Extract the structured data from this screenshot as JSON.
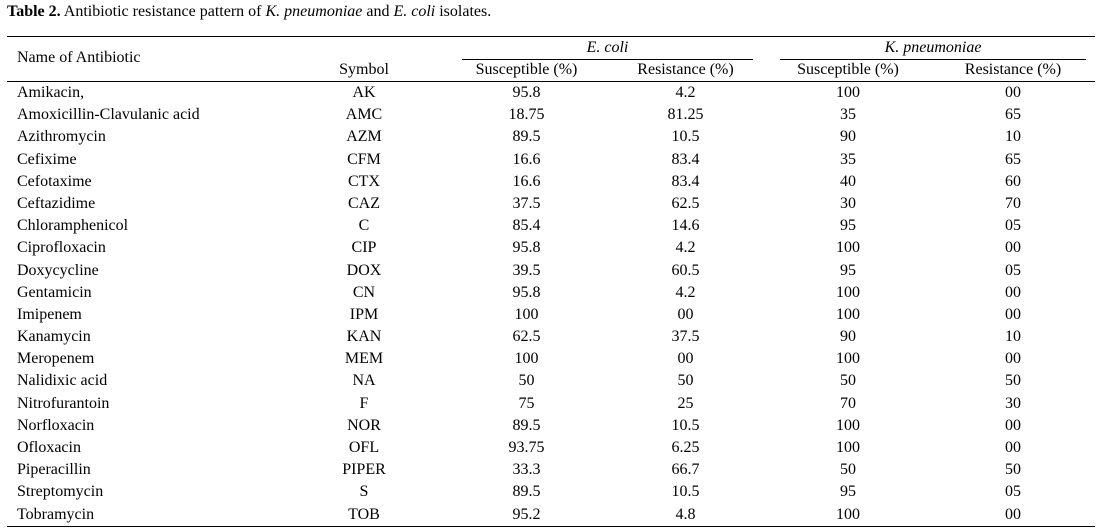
{
  "caption": {
    "label": "Table 2.",
    "text_1": " Antibiotic resistance pattern of ",
    "organism_1": "K. pneumoniae",
    "text_2": " and ",
    "organism_2": "E. coli",
    "text_3": " isolates."
  },
  "header": {
    "name": "Name of Antibiotic",
    "symbol": "Symbol",
    "group_ecoli": "E. coli",
    "group_kpn": "K. pneumoniae",
    "ecoli_susceptible": "Susceptible (%)",
    "ecoli_resistance": "Resistance (%)",
    "kpn_susceptible": "Susceptible (%)",
    "kpn_resistance": "Resistance (%)"
  },
  "rows": [
    {
      "name": "Amikacin,",
      "symbol": "AK",
      "ecoli_s": "95.8",
      "ecoli_r": "4.2",
      "kpn_s": "100",
      "kpn_r": "00"
    },
    {
      "name": "Amoxicillin-Clavulanic acid",
      "symbol": "AMC",
      "ecoli_s": "18.75",
      "ecoli_r": "81.25",
      "kpn_s": "35",
      "kpn_r": "65"
    },
    {
      "name": "Azithromycin",
      "symbol": "AZM",
      "ecoli_s": "89.5",
      "ecoli_r": "10.5",
      "kpn_s": "90",
      "kpn_r": "10"
    },
    {
      "name": "Cefixime",
      "symbol": "CFM",
      "ecoli_s": "16.6",
      "ecoli_r": "83.4",
      "kpn_s": "35",
      "kpn_r": "65"
    },
    {
      "name": "Cefotaxime",
      "symbol": "CTX",
      "ecoli_s": "16.6",
      "ecoli_r": "83.4",
      "kpn_s": "40",
      "kpn_r": "60"
    },
    {
      "name": "Ceftazidime",
      "symbol": "CAZ",
      "ecoli_s": "37.5",
      "ecoli_r": "62.5",
      "kpn_s": "30",
      "kpn_r": "70"
    },
    {
      "name": "Chloramphenicol",
      "symbol": "C",
      "ecoli_s": "85.4",
      "ecoli_r": "14.6",
      "kpn_s": "95",
      "kpn_r": "05"
    },
    {
      "name": "Ciprofloxacin",
      "symbol": "CIP",
      "ecoli_s": "95.8",
      "ecoli_r": "4.2",
      "kpn_s": "100",
      "kpn_r": "00"
    },
    {
      "name": "Doxycycline",
      "symbol": "DOX",
      "ecoli_s": "39.5",
      "ecoli_r": "60.5",
      "kpn_s": "95",
      "kpn_r": "05"
    },
    {
      "name": "Gentamicin",
      "symbol": "CN",
      "ecoli_s": "95.8",
      "ecoli_r": "4.2",
      "kpn_s": "100",
      "kpn_r": "00"
    },
    {
      "name": "Imipenem",
      "symbol": "IPM",
      "ecoli_s": "100",
      "ecoli_r": "00",
      "kpn_s": "100",
      "kpn_r": "00"
    },
    {
      "name": "Kanamycin",
      "symbol": "KAN",
      "ecoli_s": "62.5",
      "ecoli_r": "37.5",
      "kpn_s": "90",
      "kpn_r": "10"
    },
    {
      "name": "Meropenem",
      "symbol": "MEM",
      "ecoli_s": "100",
      "ecoli_r": "00",
      "kpn_s": "100",
      "kpn_r": "00"
    },
    {
      "name": "Nalidixic acid",
      "symbol": "NA",
      "ecoli_s": "50",
      "ecoli_r": "50",
      "kpn_s": "50",
      "kpn_r": "50"
    },
    {
      "name": "Nitrofurantoin",
      "symbol": "F",
      "ecoli_s": "75",
      "ecoli_r": "25",
      "kpn_s": "70",
      "kpn_r": "30"
    },
    {
      "name": "Norfloxacin",
      "symbol": "NOR",
      "ecoli_s": "89.5",
      "ecoli_r": "10.5",
      "kpn_s": "100",
      "kpn_r": "00"
    },
    {
      "name": "Ofloxacin",
      "symbol": "OFL",
      "ecoli_s": "93.75",
      "ecoli_r": "6.25",
      "kpn_s": "100",
      "kpn_r": "00"
    },
    {
      "name": "Piperacillin",
      "symbol": "PIPER",
      "ecoli_s": "33.3",
      "ecoli_r": "66.7",
      "kpn_s": "50",
      "kpn_r": "50"
    },
    {
      "name": "Streptomycin",
      "symbol": "S",
      "ecoli_s": "89.5",
      "ecoli_r": "10.5",
      "kpn_s": "95",
      "kpn_r": "05"
    },
    {
      "name": "Tobramycin",
      "symbol": "TOB",
      "ecoli_s": "95.2",
      "ecoli_r": "4.8",
      "kpn_s": "100",
      "kpn_r": "00"
    }
  ]
}
